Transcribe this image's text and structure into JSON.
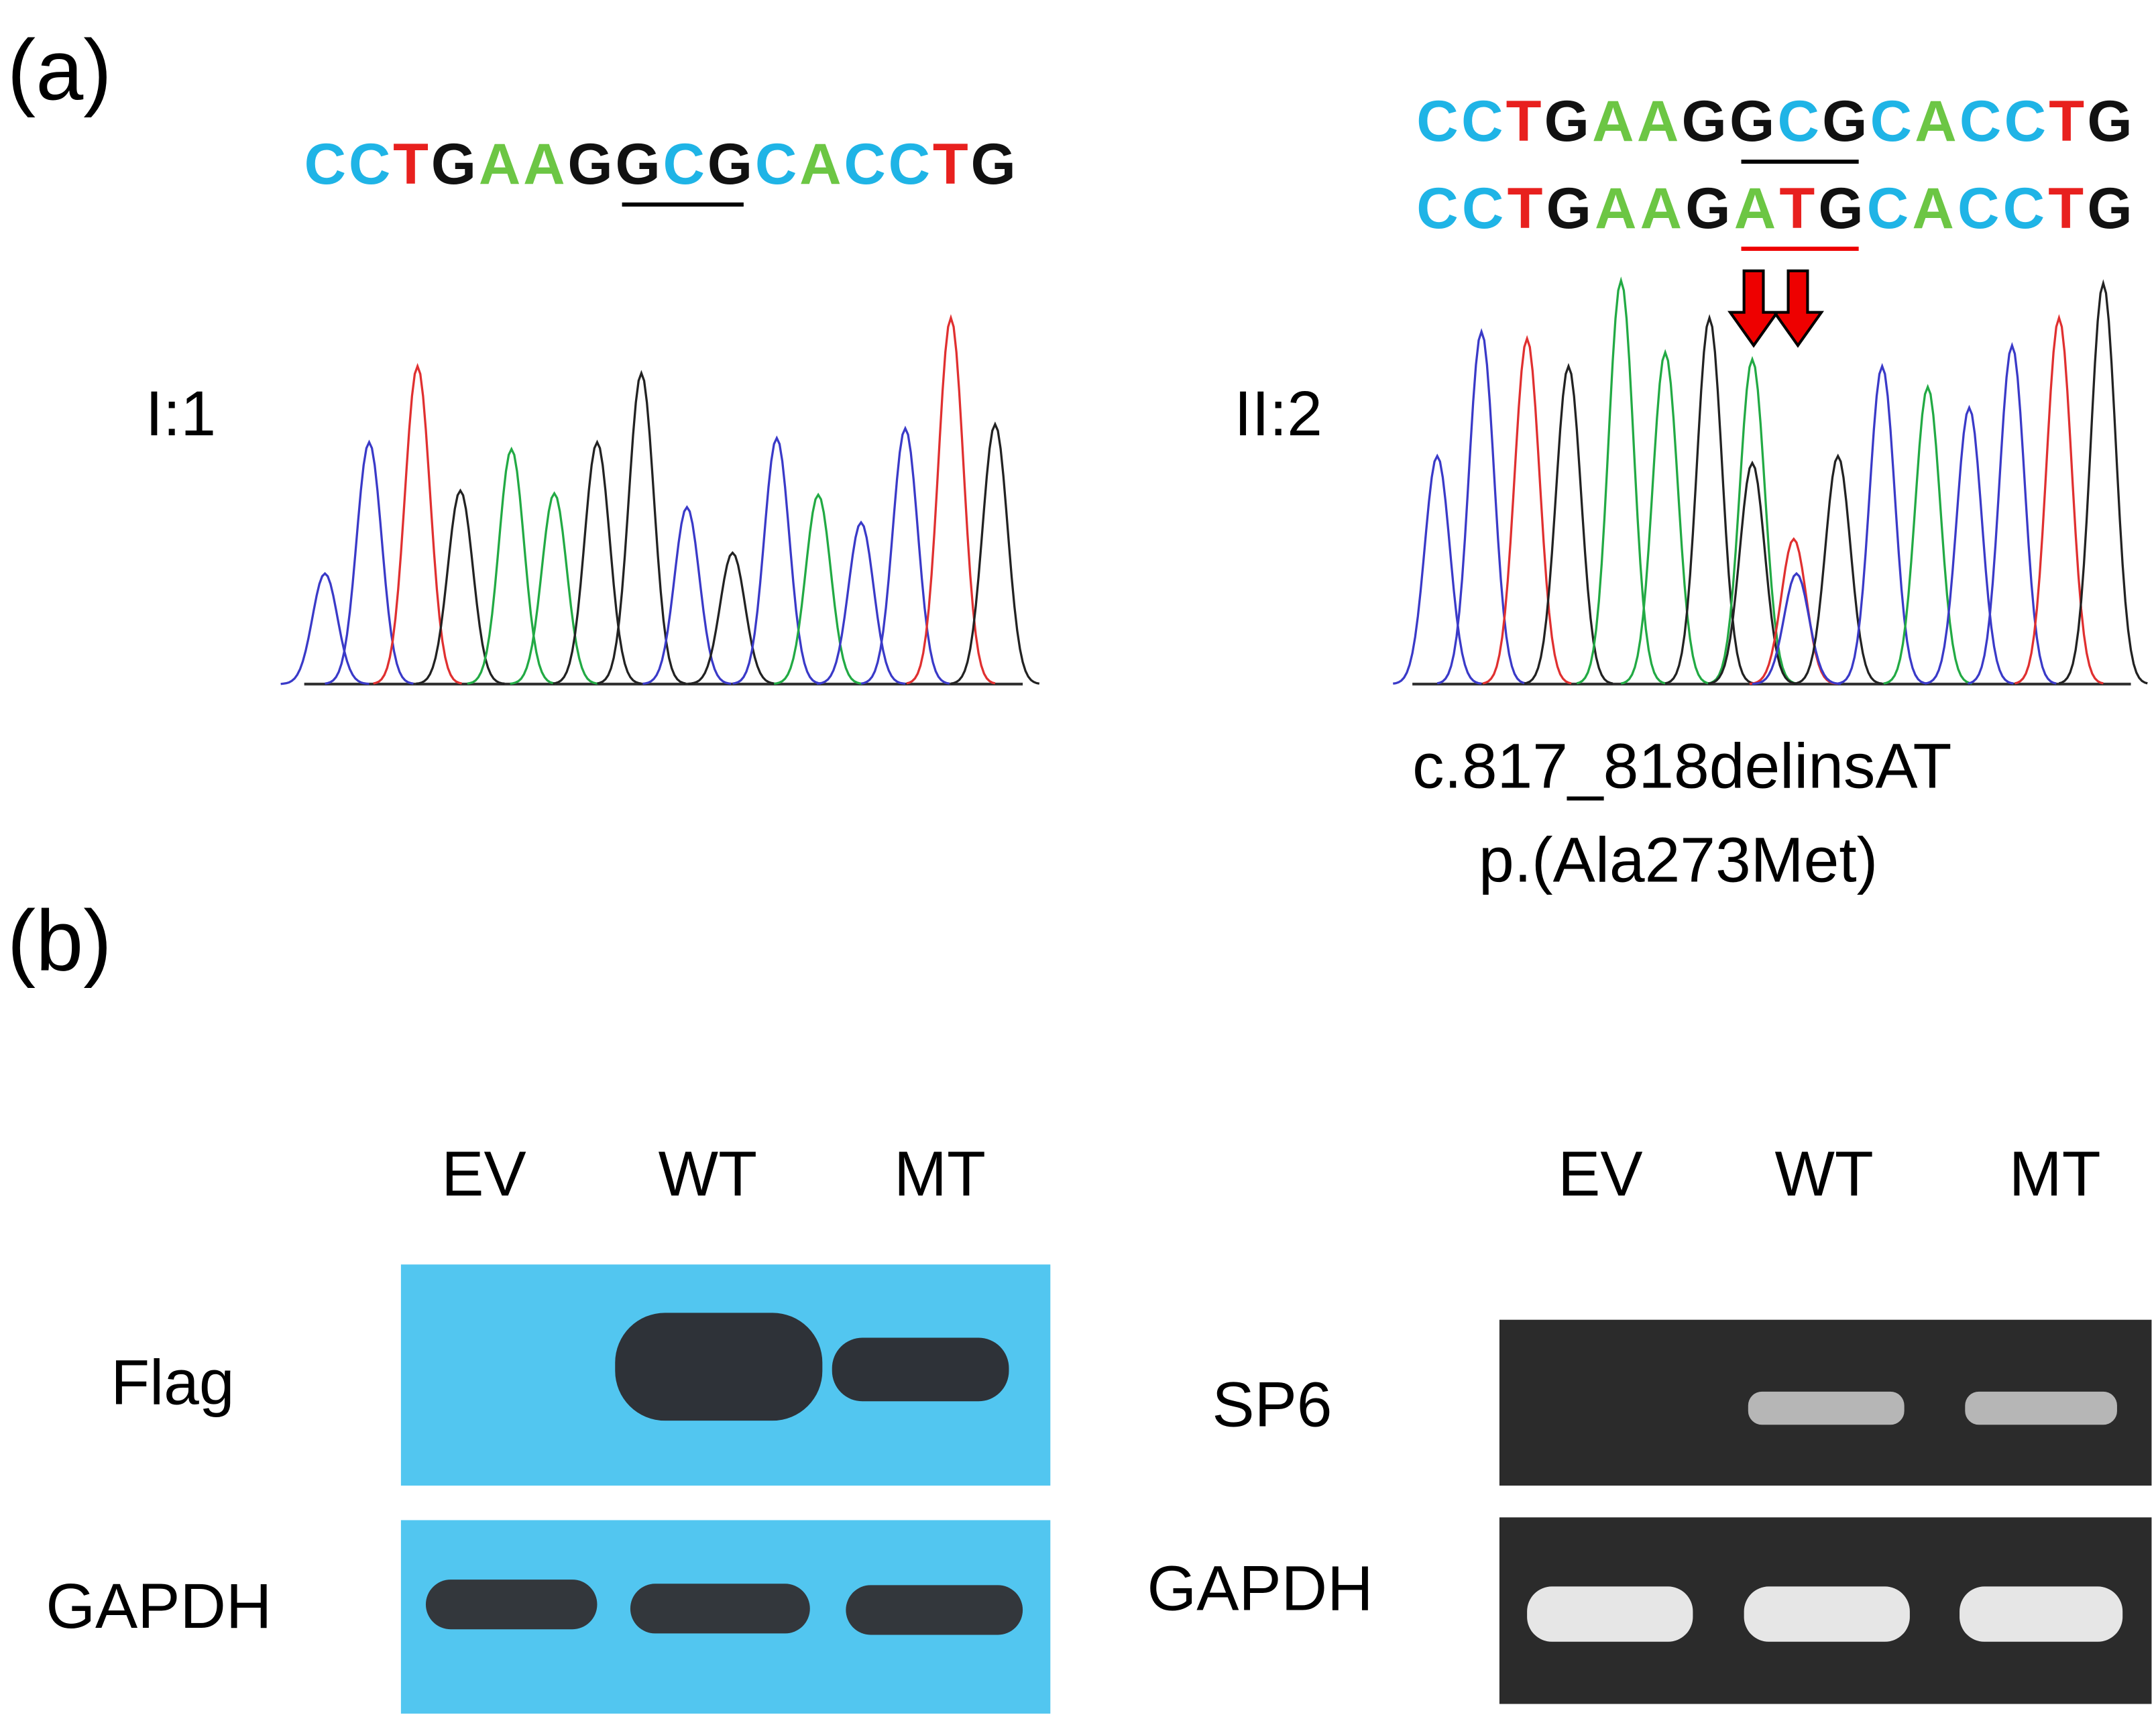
{
  "panel_a": {
    "label": "(a)",
    "left": {
      "sample": "I:1",
      "sequence": "CCTGAAGGCGCACCTG"
    },
    "right": {
      "sample": "II:2",
      "sequences": [
        "CCTGAAGGCGCACCTG",
        "CCTGAAGATGCACCTG"
      ],
      "variant": [
        "c.817_818delinsAT",
        "p.(Ala273Met)"
      ]
    }
  },
  "panel_b": {
    "label": "(b)",
    "western": {
      "lanes": [
        "EV",
        "WT",
        "MT"
      ],
      "rows": [
        "Flag",
        "GAPDH"
      ]
    },
    "rtpcr": {
      "lanes": [
        "EV",
        "WT",
        "MT"
      ],
      "rows": [
        "SP6",
        "GAPDH"
      ]
    }
  }
}
